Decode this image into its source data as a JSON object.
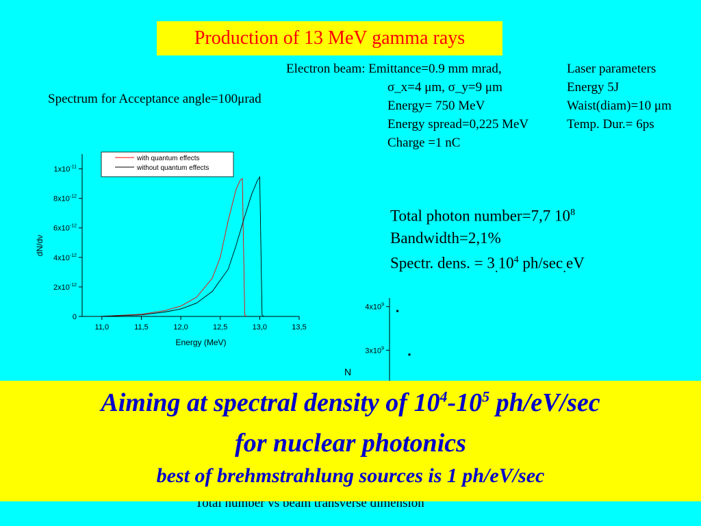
{
  "title": "Production of 13 MeV gamma rays",
  "electron_beam": {
    "lines": [
      "Electron beam: Emittance=0.9 mm mrad,",
      "σ_x=4 μm, σ_y=9 μm",
      "Energy= 750 MeV",
      "Energy spread=0,225 MeV",
      "Charge =1 nC"
    ]
  },
  "laser": {
    "lines": [
      "Laser parameters",
      "Energy 5J",
      "Waist(diam)=10 μm",
      "Temp. Dur.= 6ps"
    ]
  },
  "spectrum_caption": "Spectrum for Acceptance angle=100μrad",
  "summary": {
    "photon_number": "Total photon number=7,7 10",
    "photon_exp": "8",
    "bandwidth": "Bandwidth=2,1%",
    "dens_a": "Spectr. dens. = 3",
    "dens_dot1": ".",
    "dens_b": "10",
    "dens_exp": "4",
    "dens_c": " ph/sec",
    "dens_dot2": ".",
    "dens_d": "eV"
  },
  "chart_data": [
    {
      "type": "line",
      "xlabel": "Energy (MeV)",
      "ylabel": "dN/dν",
      "xlim": [
        10.75,
        13.5
      ],
      "ylim": [
        0,
        1.1e-11
      ],
      "x_ticks": [
        "11,0",
        "11,5",
        "12,0",
        "12,5",
        "13,0",
        "13,5"
      ],
      "x_tick_values": [
        11.0,
        11.5,
        12.0,
        12.5,
        13.0,
        13.5
      ],
      "y_ticks": [
        {
          "mant": "0",
          "exp": ""
        },
        {
          "mant": "2x10",
          "exp": "-12"
        },
        {
          "mant": "4x10",
          "exp": "-12"
        },
        {
          "mant": "6x10",
          "exp": "-12"
        },
        {
          "mant": "8x10",
          "exp": "-12"
        },
        {
          "mant": "1x10",
          "exp": "-11"
        }
      ],
      "y_tick_values": [
        0,
        2e-12,
        4e-12,
        6e-12,
        8e-12,
        1e-11
      ],
      "legend_position": "top-right",
      "series": [
        {
          "name": "with quantum effects",
          "color": "#ff0000",
          "x": [
            10.75,
            11.0,
            11.5,
            11.8,
            12.0,
            12.2,
            12.4,
            12.5,
            12.6,
            12.7,
            12.75,
            12.78,
            12.81,
            12.83
          ],
          "y": [
            0,
            1e-14,
            1.5e-13,
            4e-13,
            7e-13,
            1.3e-12,
            2.6e-12,
            4e-12,
            6.5e-12,
            8.6e-12,
            9.2e-12,
            9.35e-12,
            1e-13,
            0
          ]
        },
        {
          "name": "without quantum effects",
          "color": "#000000",
          "x": [
            10.75,
            11.0,
            11.5,
            11.8,
            12.0,
            12.2,
            12.4,
            12.6,
            12.7,
            12.8,
            12.9,
            12.97,
            13.0,
            13.03,
            13.05
          ],
          "y": [
            0,
            1e-14,
            1e-13,
            3e-13,
            5e-13,
            9e-13,
            1.7e-12,
            3.2e-12,
            4.8e-12,
            6.6e-12,
            8.3e-12,
            9.2e-12,
            9.45e-12,
            1e-13,
            0
          ]
        }
      ]
    },
    {
      "type": "scatter",
      "ylabel": "N",
      "ylim": [
        2000000000.0,
        4200000000.0
      ],
      "x_range": [
        0,
        1
      ],
      "y_ticks": [
        {
          "mant": "4x10",
          "exp": "9"
        },
        {
          "mant": "3x10",
          "exp": "9"
        }
      ],
      "y_tick_values": [
        4000000000.0,
        3000000000.0
      ],
      "points": [
        {
          "x": 0.1,
          "y": 3900000000.0
        },
        {
          "x": 0.25,
          "y": 2900000000.0
        }
      ]
    }
  ],
  "hidden_caption": "Total number vs beam transverse dimension",
  "banner": {
    "line1_a": "Aiming at spectral density of 10",
    "line1_exp1": "4",
    "line1_b": "-10",
    "line1_exp2": "5",
    "line1_c": " ph/eV/sec",
    "line2": "for nuclear photonics",
    "line3": "best of brehmstrahlung sources is 1 ph/eV/sec"
  }
}
